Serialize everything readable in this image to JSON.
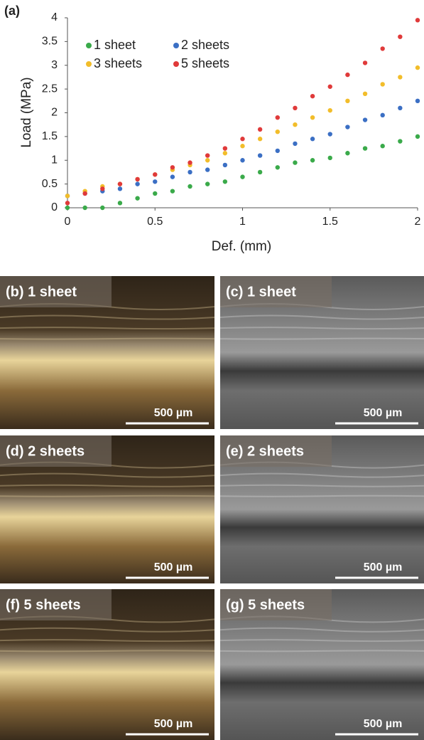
{
  "chart_data": {
    "type": "scatter",
    "title": "(a)",
    "xlabel": "Def.  (mm)",
    "ylabel": "Load  (MPa)",
    "x": [
      0,
      0.1,
      0.2,
      0.3,
      0.4,
      0.5,
      0.6,
      0.7,
      0.8,
      0.9,
      1.0,
      1.1,
      1.2,
      1.3,
      1.4,
      1.5,
      1.6,
      1.7,
      1.8,
      1.9,
      2.0
    ],
    "series": [
      {
        "name": "1 sheet",
        "color": "#3aaa4a",
        "values": [
          0,
          0,
          0,
          0.1,
          0.2,
          0.3,
          0.35,
          0.45,
          0.5,
          0.55,
          0.65,
          0.75,
          0.85,
          0.95,
          1.0,
          1.05,
          1.15,
          1.25,
          1.3,
          1.4,
          1.5
        ]
      },
      {
        "name": "2 sheets",
        "color": "#3b6fc4",
        "values": [
          0.25,
          0.3,
          0.35,
          0.4,
          0.5,
          0.55,
          0.65,
          0.75,
          0.8,
          0.9,
          1.0,
          1.1,
          1.2,
          1.35,
          1.45,
          1.55,
          1.7,
          1.85,
          1.95,
          2.1,
          2.25
        ]
      },
      {
        "name": "3 sheets",
        "color": "#f2bd2a",
        "values": [
          0.25,
          0.35,
          0.45,
          0.5,
          0.6,
          0.7,
          0.8,
          0.9,
          1.0,
          1.15,
          1.3,
          1.45,
          1.6,
          1.75,
          1.9,
          2.05,
          2.25,
          2.4,
          2.6,
          2.75,
          2.95
        ]
      },
      {
        "name": "5 sheets",
        "color": "#e03a3a",
        "values": [
          0.1,
          0.3,
          0.4,
          0.5,
          0.6,
          0.7,
          0.85,
          0.95,
          1.1,
          1.25,
          1.45,
          1.65,
          1.9,
          2.1,
          2.35,
          2.55,
          2.8,
          3.05,
          3.35,
          3.6,
          3.95
        ]
      }
    ],
    "xlim": [
      0,
      2
    ],
    "xticks": [
      0,
      0.5,
      1,
      1.5,
      2
    ],
    "ylim": [
      0,
      4
    ],
    "yticks": [
      0,
      0.5,
      1,
      1.5,
      2,
      2.5,
      3,
      3.5,
      4
    ],
    "grid": false,
    "legend": "upper left"
  },
  "panels": [
    {
      "label": "(b) 1 sheet",
      "scale": "500 µm"
    },
    {
      "label": "(c) 1 sheet",
      "scale": "500 µm"
    },
    {
      "label": "(d) 2 sheets",
      "scale": "500 µm"
    },
    {
      "label": "(e) 2 sheets",
      "scale": "500 µm"
    },
    {
      "label": "(f) 5 sheets",
      "scale": "500 µm"
    },
    {
      "label": "(g) 5 sheets",
      "scale": "500 µm"
    }
  ]
}
